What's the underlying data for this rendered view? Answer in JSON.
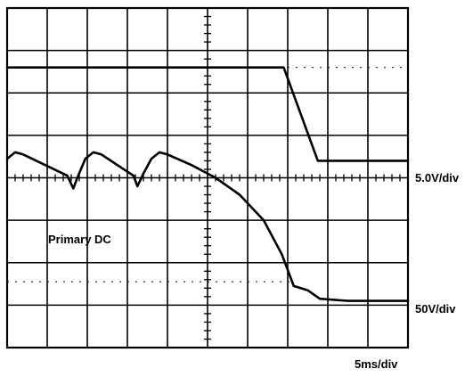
{
  "chart_data": {
    "type": "line",
    "title": "",
    "grid": {
      "x_divisions": 10,
      "y_divisions": 8,
      "visible": true
    },
    "scales": {
      "time": "5ms/div",
      "channel_a": "5.0V/div",
      "channel_b": "50V/div"
    },
    "annotations": {
      "trace_label": "Primary DC"
    },
    "series": [
      {
        "name": "",
        "units": "div",
        "points": [
          [
            0,
            6.6
          ],
          [
            6.9,
            6.6
          ],
          [
            7.75,
            4.4
          ],
          [
            10,
            4.4
          ]
        ]
      },
      {
        "name": "Primary DC",
        "units": "div",
        "points": [
          [
            0,
            4.45
          ],
          [
            0.2,
            4.6
          ],
          [
            0.4,
            4.55
          ],
          [
            1.5,
            4.05
          ],
          [
            1.65,
            3.75
          ],
          [
            1.75,
            4.0
          ],
          [
            1.95,
            4.45
          ],
          [
            2.15,
            4.6
          ],
          [
            2.35,
            4.55
          ],
          [
            3.15,
            4.05
          ],
          [
            3.25,
            3.8
          ],
          [
            3.4,
            4.1
          ],
          [
            3.6,
            4.45
          ],
          [
            3.8,
            4.6
          ],
          [
            4.0,
            4.55
          ],
          [
            4.6,
            4.3
          ],
          [
            5.2,
            4.0
          ],
          [
            5.8,
            3.6
          ],
          [
            6.4,
            3.0
          ],
          [
            6.85,
            2.2
          ],
          [
            7.15,
            1.45
          ],
          [
            7.5,
            1.35
          ],
          [
            7.8,
            1.15
          ],
          [
            8.5,
            1.1
          ],
          [
            10,
            1.1
          ]
        ]
      }
    ],
    "reference_lines": [
      {
        "y": 6.6,
        "x_start": 7.0,
        "x_end": 10
      },
      {
        "y": 1.55,
        "x_start": 0,
        "x_end": 7.2
      }
    ]
  }
}
